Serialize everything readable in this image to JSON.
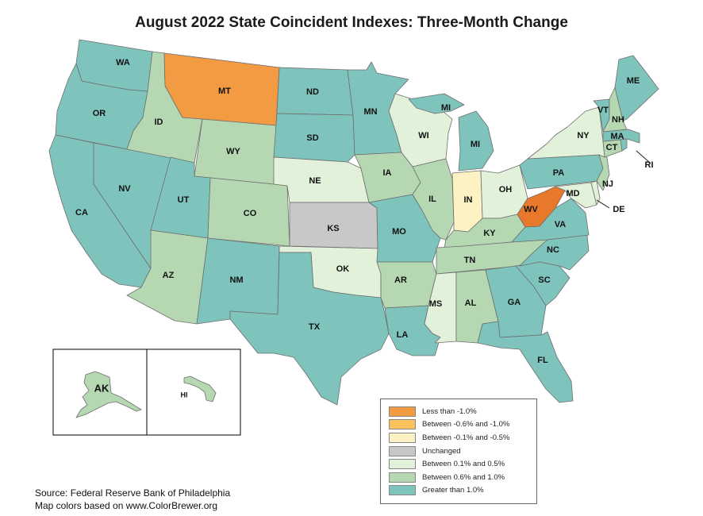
{
  "title": "August 2022 State Coincident Indexes: Three-Month Change",
  "colors": {
    "lt_neg1": "#f29b43",
    "neg06_neg1": "#fbc25e",
    "neg01_neg05": "#fdf2c4",
    "unchanged": "#c8c8c8",
    "p01_05": "#e2f1d9",
    "p06_10": "#b5d8b2",
    "gt1": "#7ec4bd",
    "wv_dark": "#e8792a"
  },
  "legend": [
    {
      "label": "Less than -1.0%",
      "color": "#f29b43"
    },
    {
      "label": "Between -0.6% and -1.0%",
      "color": "#fbc25e"
    },
    {
      "label": "Between -0.1% and -0.5%",
      "color": "#fdf2c4"
    },
    {
      "label": "Unchanged",
      "color": "#c8c8c8"
    },
    {
      "label": "Between 0.1% and 0.5%",
      "color": "#e2f1d9"
    },
    {
      "label": "Between 0.6% and 1.0%",
      "color": "#b5d8b2"
    },
    {
      "label": "Greater than 1.0%",
      "color": "#7ec4bd"
    }
  ],
  "states": {
    "WA": {
      "label": "WA",
      "category": "gt1"
    },
    "OR": {
      "label": "OR",
      "category": "gt1"
    },
    "CA": {
      "label": "CA",
      "category": "gt1"
    },
    "NV": {
      "label": "NV",
      "category": "gt1"
    },
    "ID": {
      "label": "ID",
      "category": "p06_10"
    },
    "MT": {
      "label": "MT",
      "category": "lt_neg1"
    },
    "WY": {
      "label": "WY",
      "category": "p06_10"
    },
    "UT": {
      "label": "UT",
      "category": "gt1"
    },
    "AZ": {
      "label": "AZ",
      "category": "p06_10"
    },
    "CO": {
      "label": "CO",
      "category": "p06_10"
    },
    "NM": {
      "label": "NM",
      "category": "gt1"
    },
    "ND": {
      "label": "ND",
      "category": "gt1"
    },
    "SD": {
      "label": "SD",
      "category": "gt1"
    },
    "NE": {
      "label": "NE",
      "category": "p01_05"
    },
    "KS": {
      "label": "KS",
      "category": "unchanged"
    },
    "OK": {
      "label": "OK",
      "category": "p01_05"
    },
    "TX": {
      "label": "TX",
      "category": "gt1"
    },
    "MN": {
      "label": "MN",
      "category": "gt1"
    },
    "IA": {
      "label": "IA",
      "category": "p06_10"
    },
    "MO": {
      "label": "MO",
      "category": "gt1"
    },
    "AR": {
      "label": "AR",
      "category": "p06_10"
    },
    "LA": {
      "label": "LA",
      "category": "gt1"
    },
    "WI": {
      "label": "WI",
      "category": "p01_05"
    },
    "IL": {
      "label": "IL",
      "category": "p06_10"
    },
    "MI": {
      "label": "MI",
      "category": "gt1"
    },
    "IN": {
      "label": "IN",
      "category": "neg01_neg05"
    },
    "OH": {
      "label": "OH",
      "category": "p01_05"
    },
    "KY": {
      "label": "KY",
      "category": "p06_10"
    },
    "TN": {
      "label": "TN",
      "category": "p06_10"
    },
    "MS": {
      "label": "MS",
      "category": "p01_05"
    },
    "AL": {
      "label": "AL",
      "category": "p06_10"
    },
    "GA": {
      "label": "GA",
      "category": "gt1"
    },
    "FL": {
      "label": "FL",
      "category": "gt1"
    },
    "SC": {
      "label": "SC",
      "category": "gt1"
    },
    "NC": {
      "label": "NC",
      "category": "gt1"
    },
    "VA": {
      "label": "VA",
      "category": "gt1"
    },
    "WV": {
      "label": "WV",
      "category": "lt_neg1"
    },
    "PA": {
      "label": "PA",
      "category": "gt1"
    },
    "NY": {
      "label": "NY",
      "category": "p01_05"
    },
    "VT": {
      "label": "VT",
      "category": "gt1"
    },
    "NH": {
      "label": "NH",
      "category": "p06_10"
    },
    "ME": {
      "label": "ME",
      "category": "gt1"
    },
    "MA": {
      "label": "MA",
      "category": "gt1"
    },
    "CT": {
      "label": "CT",
      "category": "p06_10"
    },
    "RI": {
      "label": "RI",
      "category": "gt1"
    },
    "NJ": {
      "label": "NJ",
      "category": "p06_10"
    },
    "DE": {
      "label": "DE",
      "category": "p01_05"
    },
    "MD": {
      "label": "MD",
      "category": "p01_05"
    },
    "AK": {
      "label": "AK",
      "category": "p06_10"
    },
    "HI": {
      "label": "HI",
      "category": "p06_10"
    }
  },
  "mi_upper_label": "MI",
  "source_line1": "Source: Federal Reserve Bank of Philadelphia",
  "source_line2": "Map colors based on www.ColorBrewer.org"
}
